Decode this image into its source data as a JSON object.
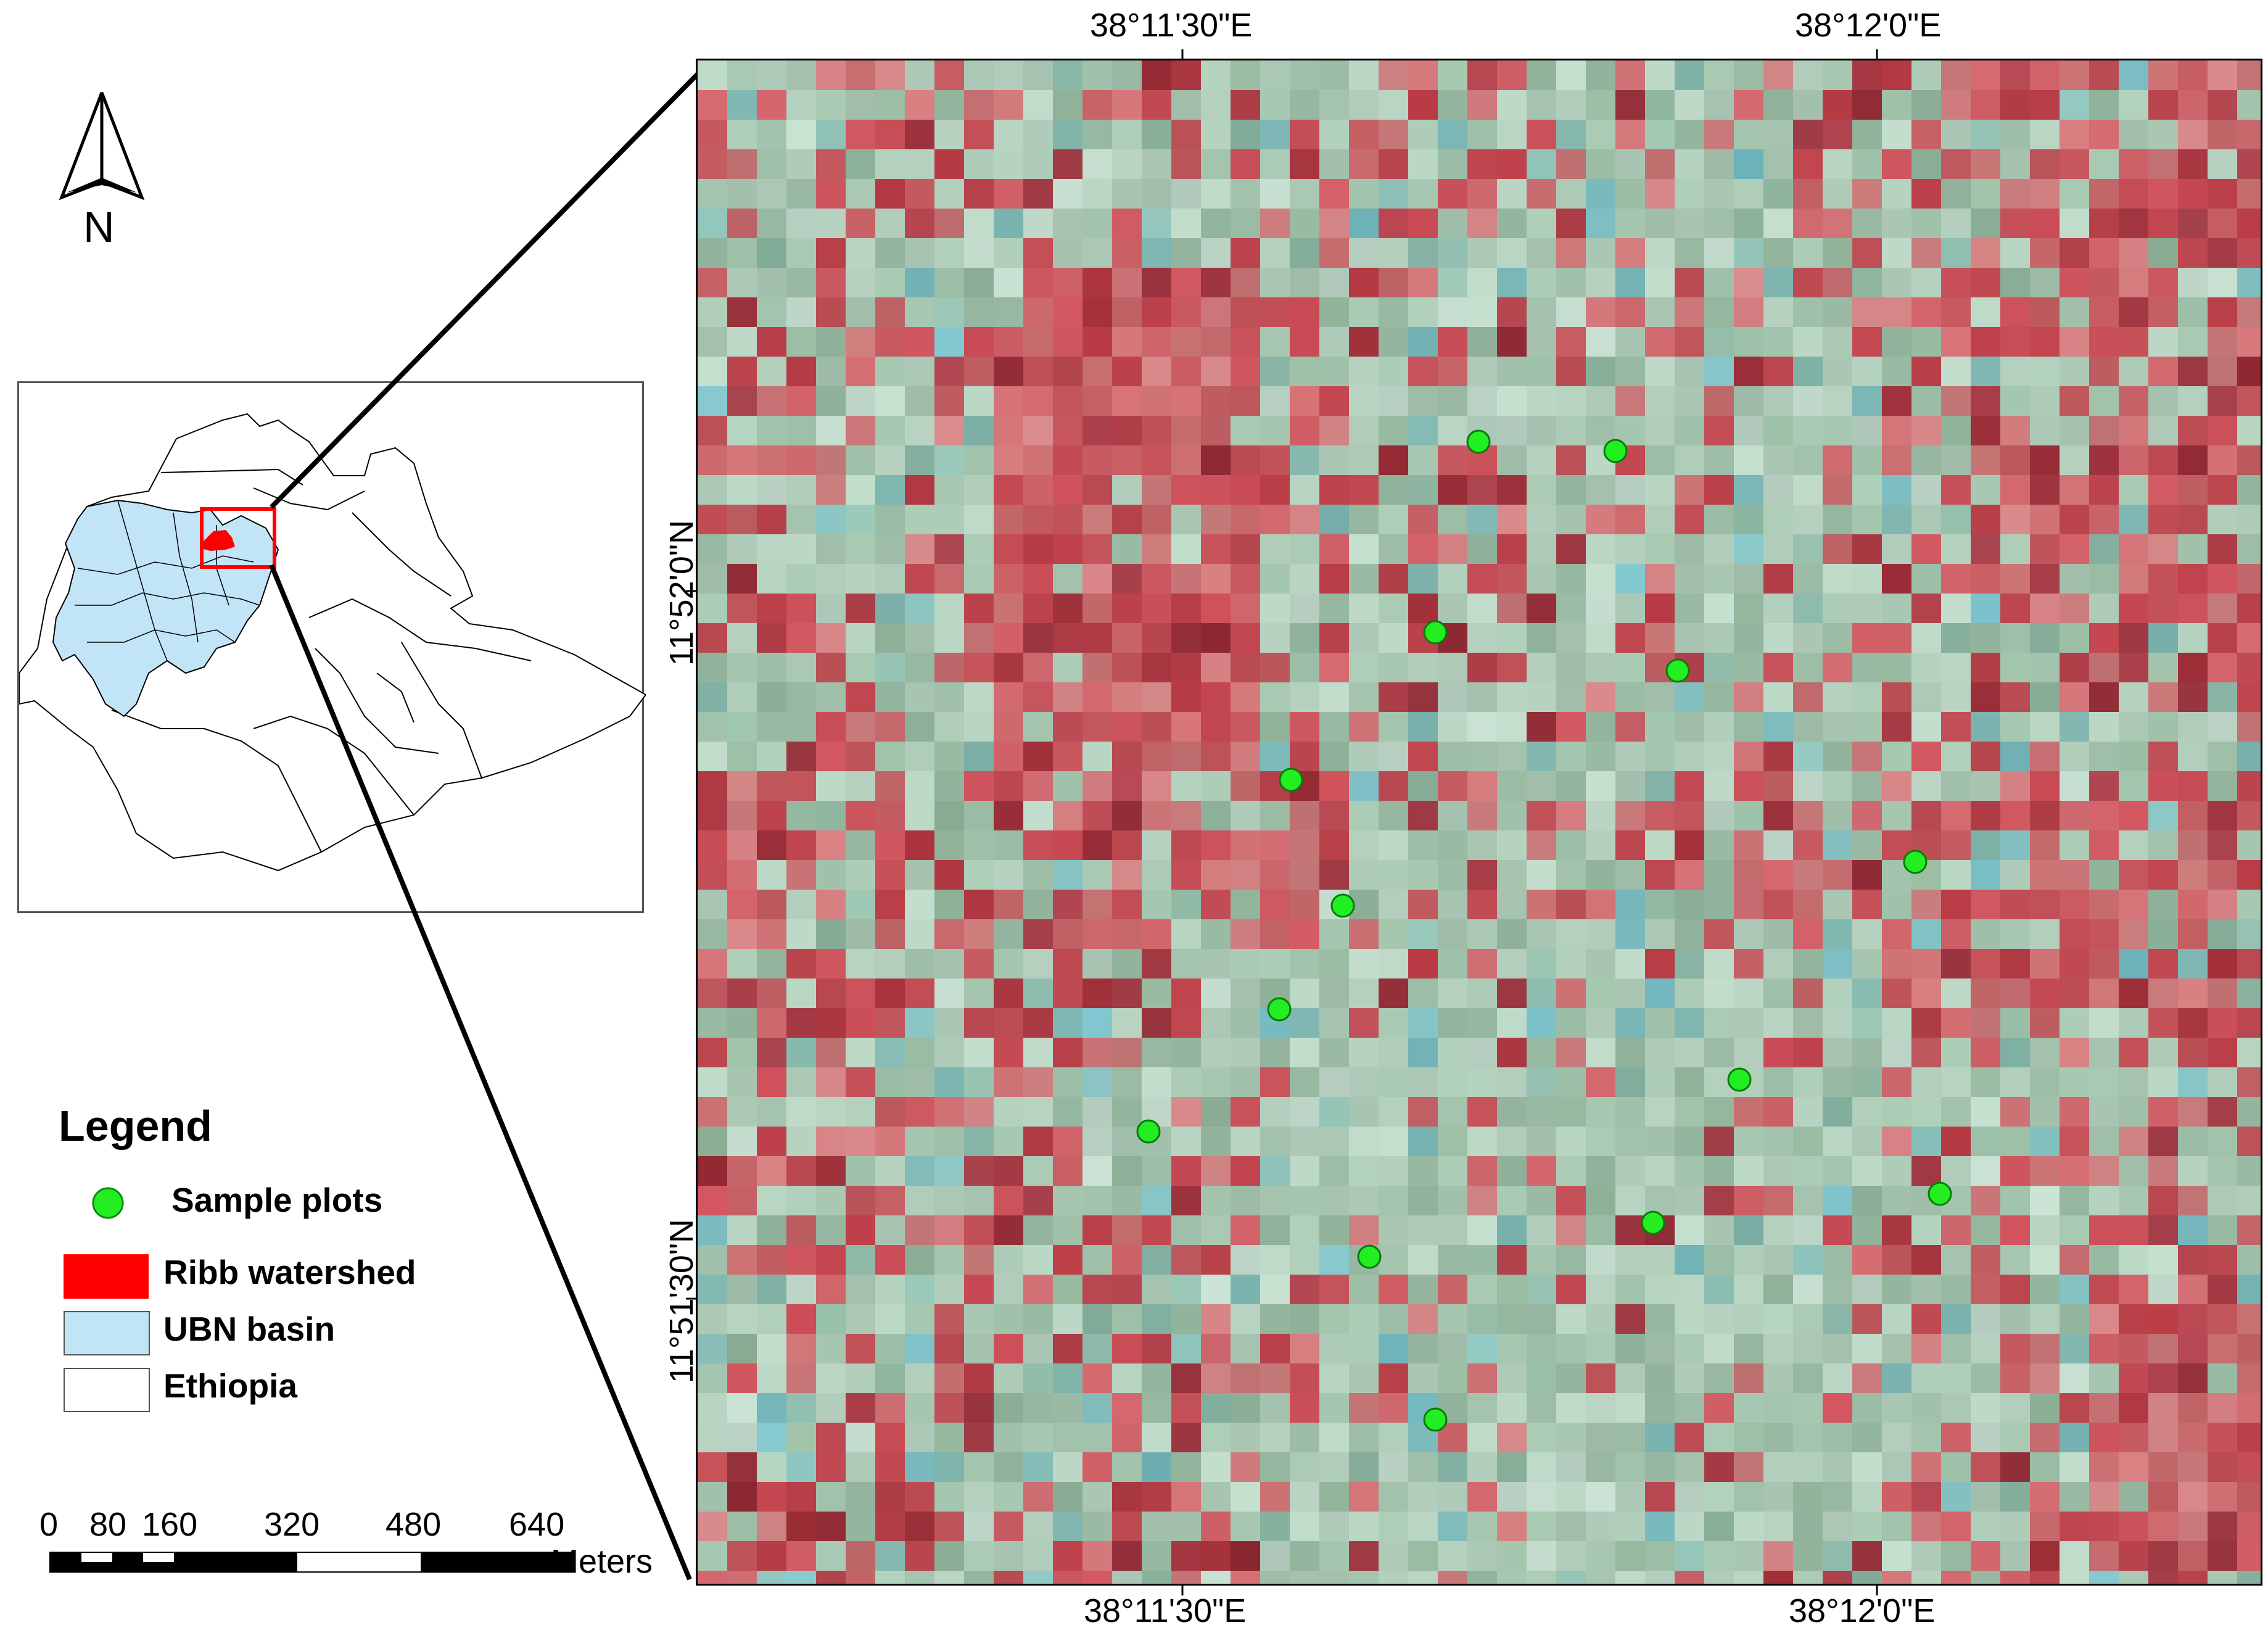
{
  "map": {
    "north_arrow": {
      "icon": "north-arrow-icon",
      "label": "N"
    },
    "coordinates": {
      "top": [
        "38°11'30\"E",
        "38°12'0\"E"
      ],
      "bottom": [
        "38°11'30\"E",
        "38°12'0\"E"
      ],
      "left": [
        "11°52'0\"N",
        "11°51'30\"N"
      ]
    },
    "sample_plot_color": "#22ee22"
  },
  "legend": {
    "title": "Legend",
    "items": [
      {
        "label": "Sample plots",
        "symbol": "green-circle-icon",
        "color": "#22ee22"
      },
      {
        "label": "Ribb watershed",
        "symbol": "red-rect-icon",
        "color": "#ff0000"
      },
      {
        "label": "UBN basin",
        "symbol": "lightblue-rect-icon",
        "color": "#c2e4f7"
      },
      {
        "label": "Ethiopia",
        "symbol": "white-rect-icon",
        "color": "#ffffff"
      }
    ]
  },
  "scale_bar": {
    "labels": [
      "0",
      "80",
      "160",
      "320",
      "480",
      "640"
    ],
    "units": "Meters"
  }
}
